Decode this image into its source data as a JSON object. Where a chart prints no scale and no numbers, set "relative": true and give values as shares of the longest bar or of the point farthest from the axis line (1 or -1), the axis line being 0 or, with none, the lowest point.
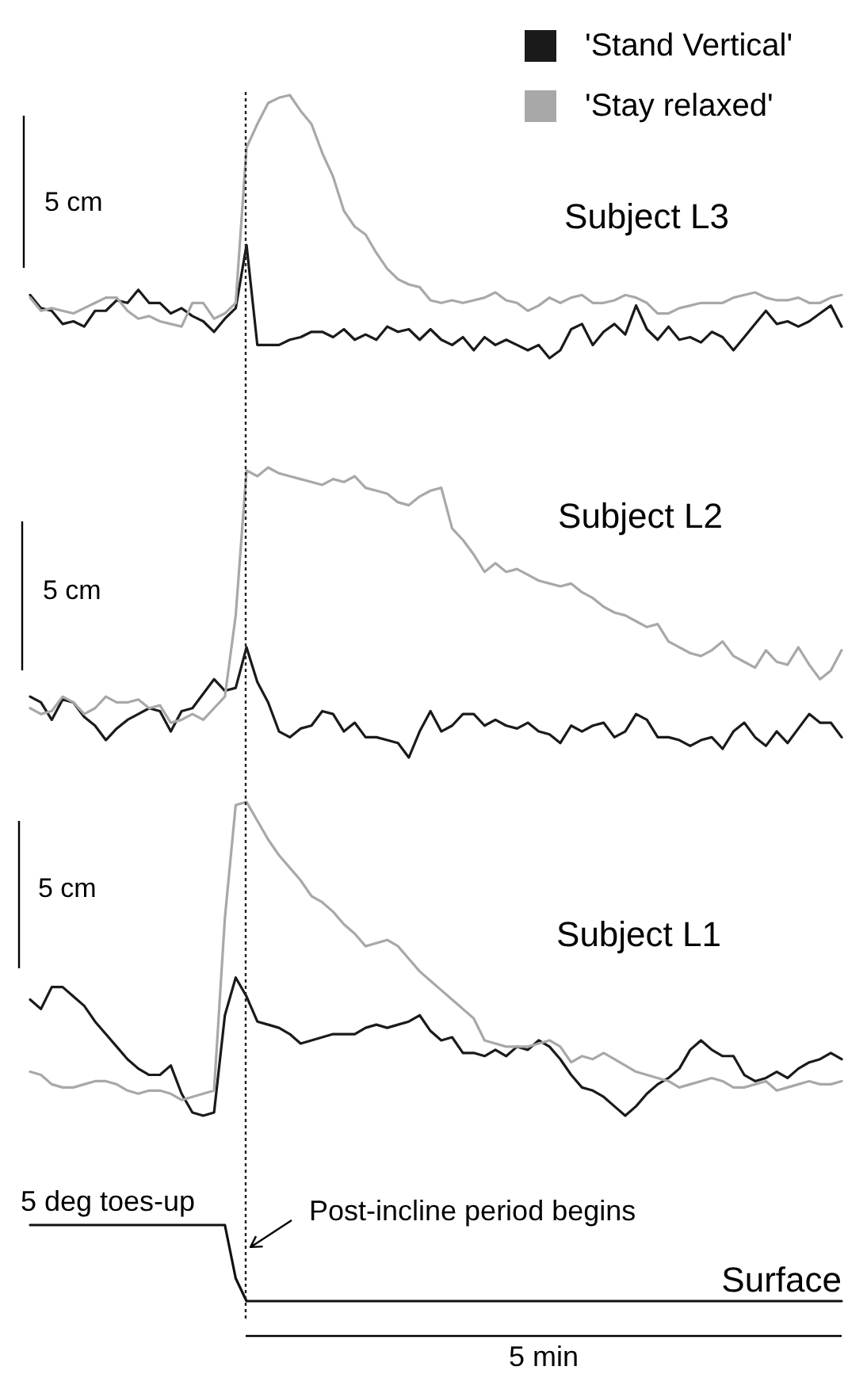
{
  "chart_data": [
    {
      "type": "line",
      "title": "Subject L3",
      "relative": true,
      "legend": "top right",
      "categories": [
        null,
        null,
        null,
        null,
        null,
        null,
        null,
        null,
        null,
        null,
        null,
        null,
        null,
        null,
        null,
        null,
        null,
        null,
        null,
        null,
        null,
        null,
        null,
        null,
        null,
        null,
        null,
        null,
        null,
        null,
        null,
        null,
        null,
        null,
        null,
        null,
        null,
        null,
        null,
        null,
        null,
        null,
        null,
        null,
        null,
        null,
        null,
        null,
        null,
        null,
        null,
        null,
        null,
        null,
        null,
        null,
        null,
        null,
        null,
        null,
        null,
        null,
        null,
        null,
        null,
        null,
        null,
        null,
        null,
        null,
        null,
        null,
        null,
        null,
        null,
        null
      ],
      "series": [
        {
          "name": "'Stand Vertical'",
          "color": "#1a1a1a",
          "values": [
            0.24,
            0.19,
            0.18,
            0.13,
            0.14,
            0.12,
            0.18,
            0.18,
            0.22,
            0.21,
            0.26,
            0.21,
            0.21,
            0.17,
            0.19,
            0.16,
            0.14,
            0.1,
            0.15,
            0.19,
            0.43,
            0.05,
            0.05,
            0.05,
            0.07,
            0.08,
            0.1,
            0.1,
            0.08,
            0.11,
            0.07,
            0.09,
            0.07,
            0.12,
            0.1,
            0.11,
            0.07,
            0.11,
            0.07,
            0.05,
            0.08,
            0.03,
            0.08,
            0.05,
            0.07,
            0.05,
            0.03,
            0.05,
            0,
            0.03,
            0.11,
            0.13,
            0.05,
            0.1,
            0.13,
            0.09,
            0.2,
            0.11,
            0.07,
            0.12,
            0.07,
            0.08,
            0.06,
            0.1,
            0.08,
            0.03,
            0.08,
            0.13,
            0.18,
            0.13,
            0.14,
            0.12,
            0.14,
            0.17,
            0.2,
            0.12
          ]
        },
        {
          "name": "'Stay relaxed'",
          "color": "#a8a8a8",
          "values": [
            0.23,
            0.18,
            0.19,
            0.18,
            0.17,
            0.19,
            0.21,
            0.23,
            0.23,
            0.18,
            0.15,
            0.16,
            0.14,
            0.13,
            0.12,
            0.21,
            0.21,
            0.15,
            0.17,
            0.21,
            0.8,
            0.89,
            0.97,
            0.99,
            1,
            0.94,
            0.89,
            0.78,
            0.69,
            0.56,
            0.5,
            0.47,
            0.4,
            0.34,
            0.3,
            0.28,
            0.27,
            0.22,
            0.21,
            0.22,
            0.21,
            0.22,
            0.23,
            0.25,
            0.22,
            0.21,
            0.18,
            0.2,
            0.23,
            0.21,
            0.23,
            0.24,
            0.21,
            0.21,
            0.22,
            0.24,
            0.23,
            0.21,
            0.17,
            0.17,
            0.19,
            0.2,
            0.21,
            0.21,
            0.21,
            0.23,
            0.24,
            0.25,
            0.23,
            0.22,
            0.22,
            0.23,
            0.21,
            0.21,
            0.23,
            0.24
          ]
        }
      ],
      "annotations": [
        "5 cm"
      ]
    },
    {
      "type": "line",
      "title": "Subject L2",
      "relative": true,
      "categories": [
        null,
        null,
        null,
        null,
        null,
        null,
        null,
        null,
        null,
        null,
        null,
        null,
        null,
        null,
        null,
        null,
        null,
        null,
        null,
        null,
        null,
        null,
        null,
        null,
        null,
        null,
        null,
        null,
        null,
        null,
        null,
        null,
        null,
        null,
        null,
        null,
        null,
        null,
        null,
        null,
        null,
        null,
        null,
        null,
        null,
        null,
        null,
        null,
        null,
        null,
        null,
        null,
        null,
        null,
        null,
        null,
        null,
        null,
        null,
        null,
        null,
        null,
        null,
        null,
        null,
        null,
        null,
        null,
        null,
        null,
        null,
        null,
        null,
        null,
        null,
        null
      ],
      "series": [
        {
          "color": "#1a1a1a",
          "values": [
            0.21,
            0.19,
            0.13,
            0.2,
            0.19,
            0.14,
            0.11,
            0.06,
            0.1,
            0.13,
            0.15,
            0.17,
            0.16,
            0.09,
            0.16,
            0.17,
            0.22,
            0.27,
            0.23,
            0.24,
            0.38,
            0.26,
            0.19,
            0.09,
            0.07,
            0.1,
            0.11,
            0.16,
            0.15,
            0.09,
            0.12,
            0.07,
            0.07,
            0.06,
            0.05,
            0,
            0.09,
            0.16,
            0.09,
            0.11,
            0.15,
            0.15,
            0.11,
            0.13,
            0.11,
            0.1,
            0.12,
            0.09,
            0.08,
            0.05,
            0.11,
            0.09,
            0.11,
            0.12,
            0.07,
            0.09,
            0.15,
            0.13,
            0.07,
            0.07,
            0.06,
            0.04,
            0.06,
            0.07,
            0.03,
            0.09,
            0.12,
            0.07,
            0.04,
            0.09,
            0.05,
            0.1,
            0.15,
            0.12,
            0.12,
            0.07
          ]
        },
        {
          "color": "#a8a8a8",
          "values": [
            0.17,
            0.15,
            0.16,
            0.21,
            0.19,
            0.15,
            0.17,
            0.21,
            0.19,
            0.19,
            0.2,
            0.17,
            0.18,
            0.12,
            0.13,
            0.15,
            0.13,
            0.17,
            0.21,
            0.49,
            0.99,
            0.97,
            1,
            0.98,
            0.97,
            0.96,
            0.95,
            0.94,
            0.96,
            0.95,
            0.97,
            0.93,
            0.92,
            0.91,
            0.88,
            0.87,
            0.9,
            0.92,
            0.93,
            0.79,
            0.75,
            0.7,
            0.64,
            0.67,
            0.64,
            0.65,
            0.63,
            0.61,
            0.6,
            0.59,
            0.6,
            0.57,
            0.55,
            0.52,
            0.5,
            0.49,
            0.47,
            0.45,
            0.46,
            0.4,
            0.38,
            0.36,
            0.35,
            0.37,
            0.4,
            0.35,
            0.33,
            0.31,
            0.37,
            0.33,
            0.32,
            0.38,
            0.32,
            0.27,
            0.3,
            0.37
          ]
        }
      ],
      "annotations": [
        "5 cm"
      ]
    },
    {
      "type": "line",
      "title": "Subject L1",
      "relative": true,
      "categories": [
        null,
        null,
        null,
        null,
        null,
        null,
        null,
        null,
        null,
        null,
        null,
        null,
        null,
        null,
        null,
        null,
        null,
        null,
        null,
        null,
        null,
        null,
        null,
        null,
        null,
        null,
        null,
        null,
        null,
        null,
        null,
        null,
        null,
        null,
        null,
        null,
        null,
        null,
        null,
        null,
        null,
        null,
        null,
        null,
        null,
        null,
        null,
        null,
        null,
        null,
        null,
        null,
        null,
        null,
        null,
        null,
        null,
        null,
        null,
        null,
        null,
        null,
        null,
        null,
        null,
        null,
        null,
        null,
        null,
        null,
        null,
        null,
        null,
        null,
        null,
        null
      ],
      "series": [
        {
          "color": "#1a1a1a",
          "values": [
            0.37,
            0.34,
            0.41,
            0.41,
            0.38,
            0.35,
            0.3,
            0.26,
            0.22,
            0.18,
            0.15,
            0.13,
            0.13,
            0.16,
            0.07,
            0.01,
            0,
            0.01,
            0.32,
            0.44,
            0.38,
            0.3,
            0.29,
            0.28,
            0.26,
            0.23,
            0.24,
            0.25,
            0.26,
            0.26,
            0.26,
            0.28,
            0.29,
            0.28,
            0.29,
            0.3,
            0.32,
            0.27,
            0.24,
            0.25,
            0.2,
            0.2,
            0.19,
            0.21,
            0.19,
            0.22,
            0.21,
            0.24,
            0.22,
            0.18,
            0.13,
            0.09,
            0.08,
            0.06,
            0.03,
            0,
            0.03,
            0.07,
            0.1,
            0.12,
            0.15,
            0.21,
            0.24,
            0.21,
            0.19,
            0.19,
            0.13,
            0.11,
            0.12,
            0.14,
            0.12,
            0.15,
            0.17,
            0.18,
            0.2,
            0.18
          ]
        },
        {
          "color": "#a8a8a8",
          "values": [
            0.14,
            0.13,
            0.1,
            0.09,
            0.09,
            0.1,
            0.11,
            0.11,
            0.1,
            0.08,
            0.07,
            0.08,
            0.08,
            0.07,
            0.05,
            0.06,
            0.07,
            0.08,
            0.63,
            0.99,
            1,
            0.94,
            0.88,
            0.83,
            0.79,
            0.75,
            0.7,
            0.68,
            0.65,
            0.61,
            0.58,
            0.54,
            0.55,
            0.56,
            0.54,
            0.5,
            0.46,
            0.43,
            0.4,
            0.37,
            0.34,
            0.31,
            0.24,
            0.23,
            0.22,
            0.22,
            0.22,
            0.23,
            0.24,
            0.22,
            0.17,
            0.19,
            0.18,
            0.2,
            0.18,
            0.16,
            0.14,
            0.13,
            0.12,
            0.11,
            0.09,
            0.1,
            0.11,
            0.12,
            0.11,
            0.09,
            0.09,
            0.1,
            0.11,
            0.08,
            0.09,
            0.1,
            0.11,
            0.1,
            0.1,
            0.11
          ]
        }
      ],
      "annotations": [
        "5 cm"
      ]
    },
    {
      "type": "line",
      "relative": true,
      "categories": [
        null,
        null,
        null,
        null,
        null,
        null,
        null,
        null,
        null,
        null,
        null,
        null,
        null,
        null,
        null,
        null,
        null,
        null,
        null,
        null,
        null,
        null,
        null,
        null,
        null,
        null,
        null,
        null,
        null,
        null,
        null,
        null,
        null,
        null,
        null,
        null,
        null,
        null,
        null,
        null,
        null,
        null,
        null,
        null,
        null,
        null,
        null,
        null,
        null,
        null,
        null,
        null,
        null,
        null,
        null,
        null,
        null,
        null,
        null,
        null,
        null,
        null,
        null,
        null,
        null,
        null,
        null,
        null,
        null,
        null,
        null,
        null,
        null,
        null,
        null,
        null
      ],
      "series": [
        {
          "name": "Surface",
          "color": "#111111",
          "values": [
            1,
            1,
            1,
            1,
            1,
            1,
            1,
            1,
            1,
            1,
            1,
            1,
            1,
            1,
            1,
            1,
            1,
            1,
            1,
            0.3,
            0,
            0,
            0,
            0,
            0,
            0,
            0,
            0,
            0,
            0,
            0,
            0,
            0,
            0,
            0,
            0,
            0,
            0,
            0,
            0,
            0,
            0,
            0,
            0,
            0,
            0,
            0,
            0,
            0,
            0,
            0,
            0,
            0,
            0,
            0,
            0,
            0,
            0,
            0,
            0,
            0,
            0,
            0,
            0,
            0,
            0,
            0,
            0,
            0,
            0,
            0,
            0,
            0,
            0,
            0,
            0
          ]
        }
      ],
      "annotations": [
        "5 deg toes-up",
        "Post-incline period begins",
        "5 min"
      ]
    }
  ]
}
